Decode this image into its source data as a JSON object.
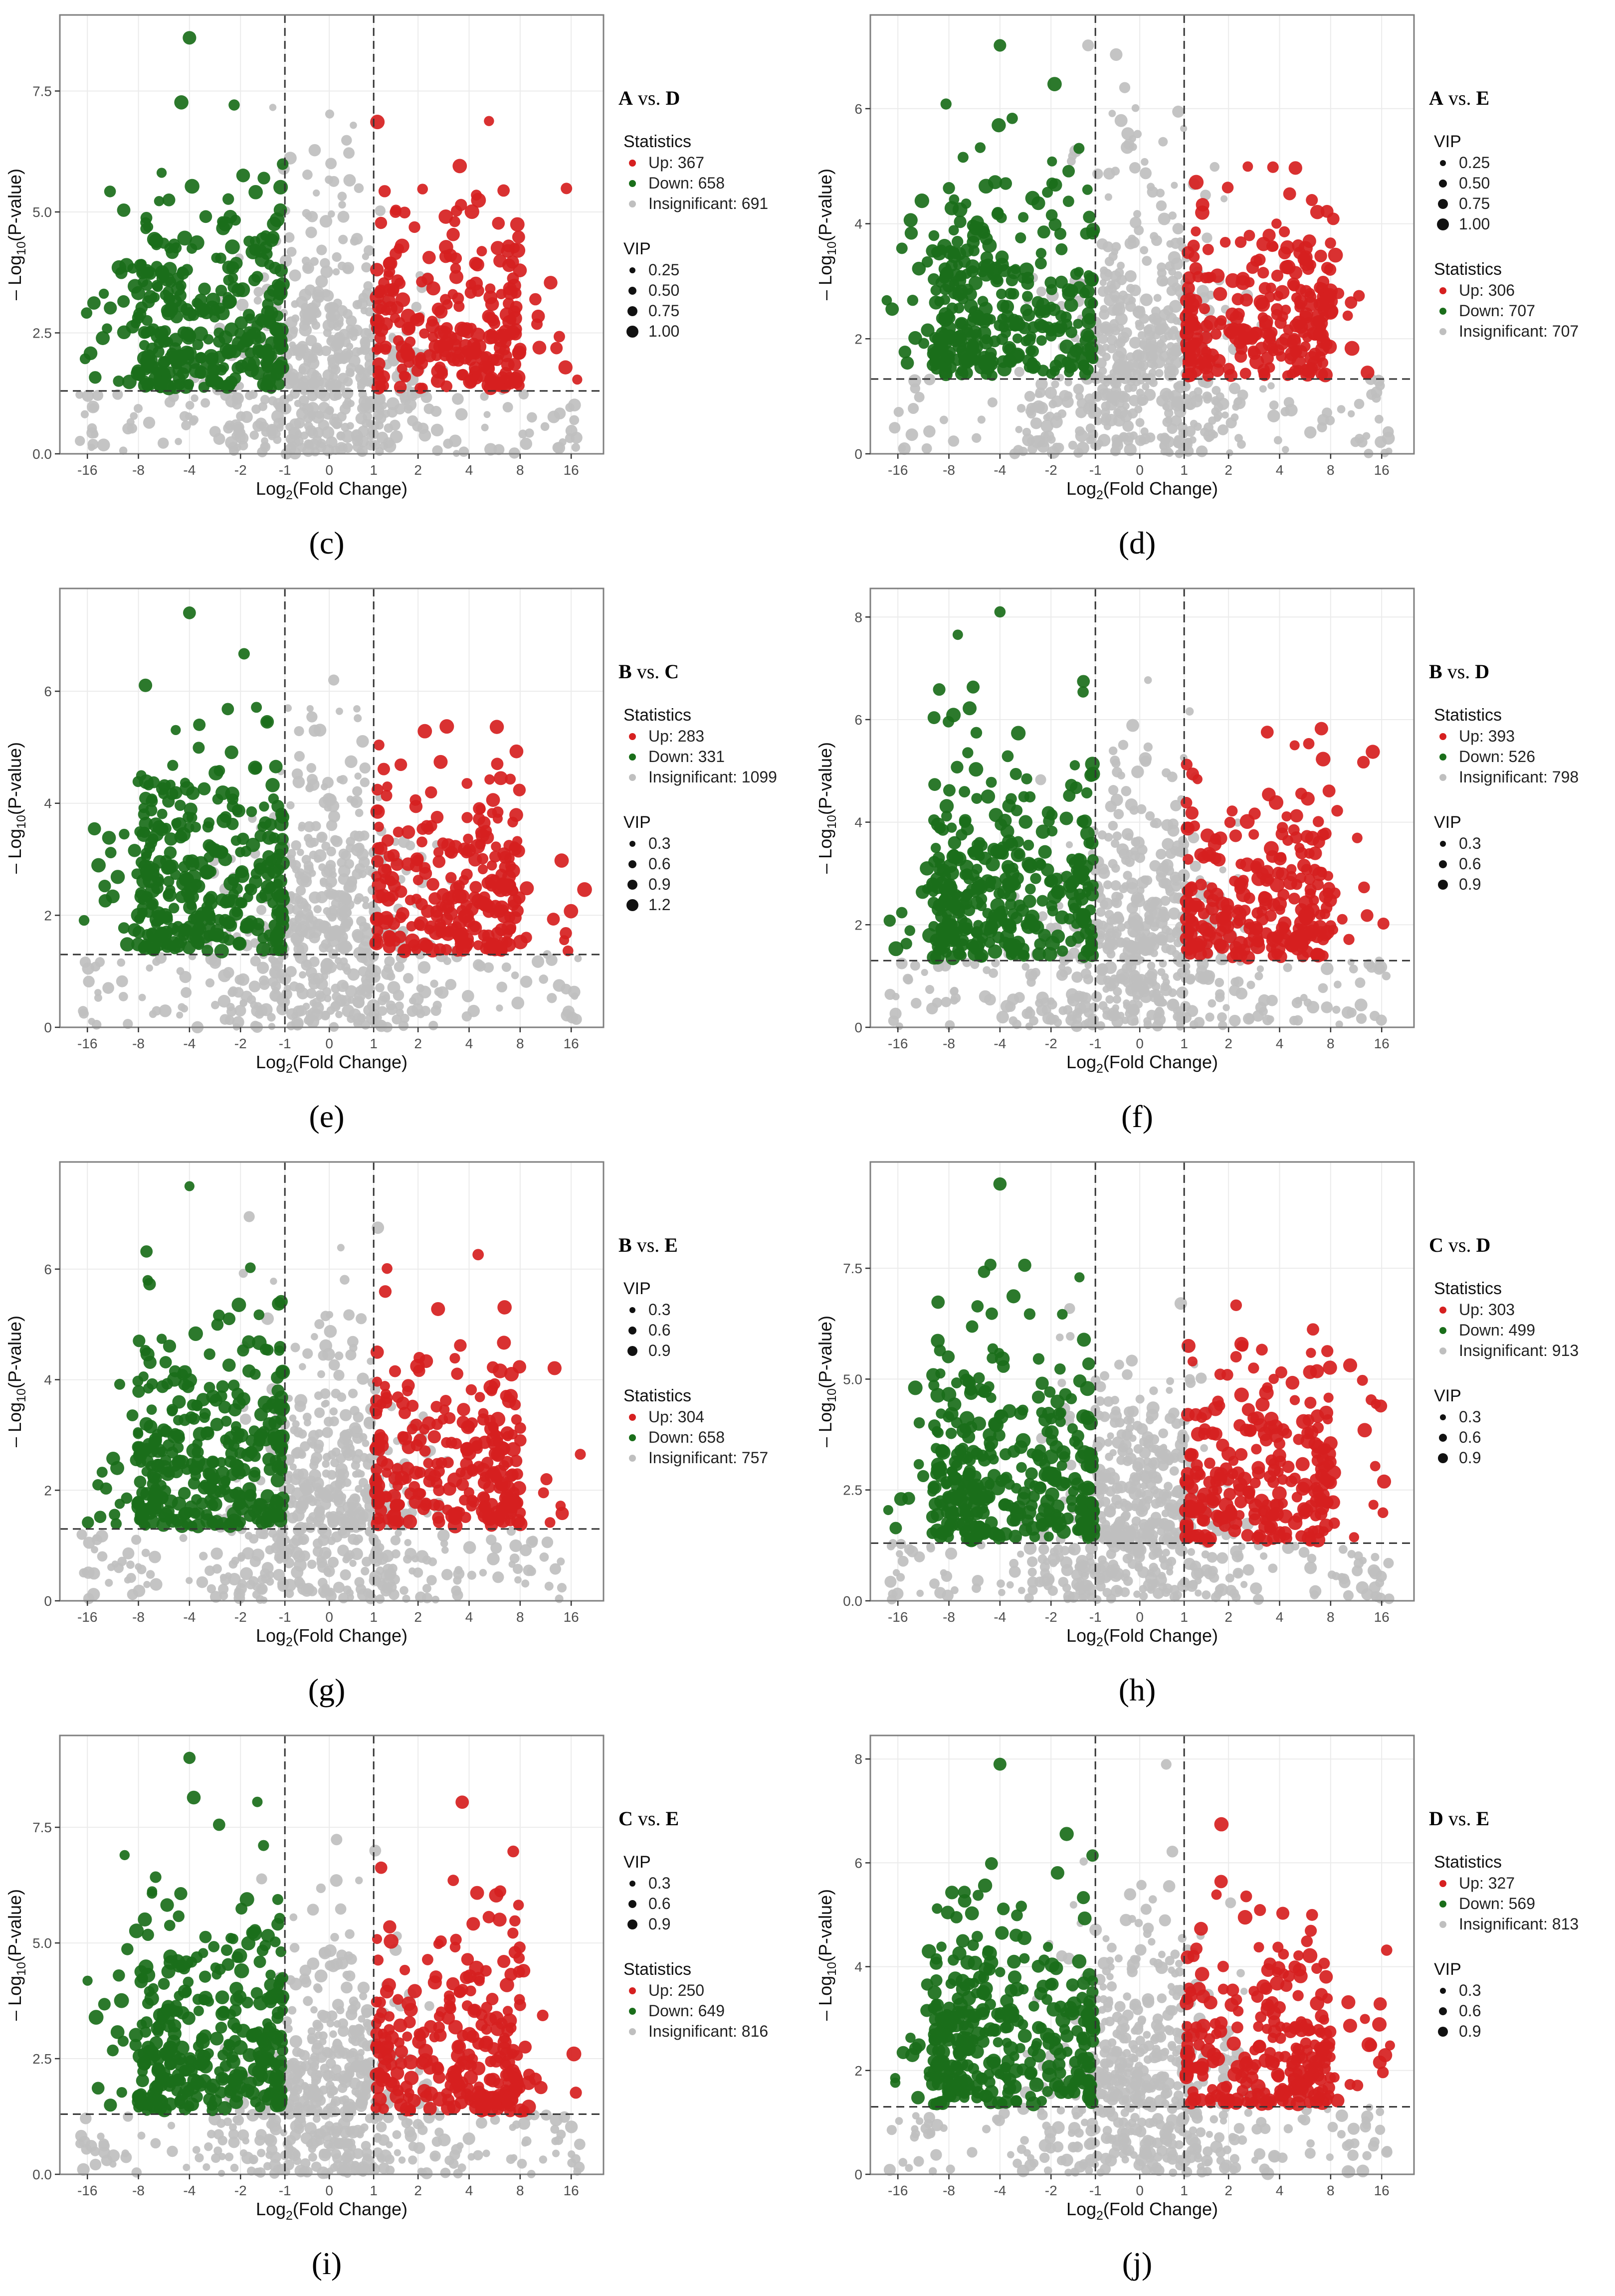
{
  "figure": {
    "x_label_base": "Log",
    "x_label_sub": "2",
    "x_label_rest": "(Fold Change)",
    "y_label_base": "– Log",
    "y_label_sub": "10",
    "y_label_rest": "(P-value)",
    "colors": {
      "up": "#d62020",
      "down": "#1a6e1a",
      "insig": "#bfbfbf",
      "grid": "#ebebeb",
      "frame": "#7f7f7f",
      "line": "#333333"
    }
  },
  "chart_data": [
    {
      "panel_label": "(c)",
      "type": "scatter",
      "title_a": "A",
      "title_vs": " vs. ",
      "title_b": "D",
      "xlabel": "Log2(Fold Change)",
      "ylabel": "– Log10(P-value)",
      "xticks": [
        "-16",
        "-8",
        "-4",
        "-2",
        "-1",
        "0",
        "1",
        "2",
        "4",
        "8",
        "16"
      ],
      "yticks": [
        "0.0",
        "2.5",
        "5.0",
        "7.5"
      ],
      "ylim": [
        0,
        8.8
      ],
      "ymax": 8.6,
      "threshold_y": 1.3,
      "vlines": [
        "-1",
        "1"
      ],
      "stats_label": "Statistics",
      "up": "Up: 367",
      "down": "Down: 658",
      "insig": "Insignificant: 691",
      "vip_label": "VIP",
      "vip_values": [
        "0.25",
        "0.50",
        "0.75",
        "1.00"
      ],
      "legend_order": "stats-first"
    },
    {
      "panel_label": "(d)",
      "type": "scatter",
      "title_a": "A",
      "title_vs": " vs. ",
      "title_b": "E",
      "xlabel": "Log2(Fold Change)",
      "ylabel": "– Log10(P-value)",
      "xticks": [
        "-16",
        "-8",
        "-4",
        "-2",
        "-1",
        "0",
        "1",
        "2",
        "4",
        "8",
        "16"
      ],
      "yticks": [
        "0",
        "2",
        "4",
        "6"
      ],
      "ylim": [
        0,
        7.4
      ],
      "ymax": 7.1,
      "threshold_y": 1.3,
      "vlines": [
        "-1",
        "1"
      ],
      "stats_label": "Statistics",
      "up": "Up: 306",
      "down": "Down: 707",
      "insig": "Insignificant: 707",
      "vip_label": "VIP",
      "vip_values": [
        "0.25",
        "0.50",
        "0.75",
        "1.00"
      ],
      "legend_order": "vip-first"
    },
    {
      "panel_label": "(e)",
      "type": "scatter",
      "title_a": "B",
      "title_vs": " vs. ",
      "title_b": "C",
      "xlabel": "Log2(Fold Change)",
      "ylabel": "– Log10(P-value)",
      "xticks": [
        "-16",
        "-8",
        "-4",
        "-2",
        "-1",
        "0",
        "1",
        "2",
        "4",
        "8",
        "16"
      ],
      "yticks": [
        "0",
        "2",
        "4",
        "6"
      ],
      "ylim": [
        0,
        7.6
      ],
      "ymax": 7.4,
      "threshold_y": 1.3,
      "vlines": [
        "-1",
        "1"
      ],
      "stats_label": "Statistics",
      "up": "Up: 283",
      "down": "Down: 331",
      "insig": "Insignificant: 1099",
      "vip_label": "VIP",
      "vip_values": [
        "0.3",
        "0.6",
        "0.9",
        "1.2"
      ],
      "legend_order": "stats-first"
    },
    {
      "panel_label": "(f)",
      "type": "scatter",
      "title_a": "B",
      "title_vs": " vs. ",
      "title_b": "D",
      "xlabel": "Log2(Fold Change)",
      "ylabel": "– Log10(P-value)",
      "xticks": [
        "-16",
        "-8",
        "-4",
        "-2",
        "-1",
        "0",
        "1",
        "2",
        "4",
        "8",
        "16"
      ],
      "yticks": [
        "0",
        "2",
        "4",
        "6",
        "8"
      ],
      "ylim": [
        0,
        8.3
      ],
      "ymax": 8.1,
      "threshold_y": 1.3,
      "vlines": [
        "-1",
        "1"
      ],
      "stats_label": "Statistics",
      "up": "Up: 393",
      "down": "Down: 526",
      "insig": "Insignificant: 798",
      "vip_label": "VIP",
      "vip_values": [
        "0.3",
        "0.6",
        "0.9"
      ],
      "legend_order": "stats-first"
    },
    {
      "panel_label": "(g)",
      "type": "scatter",
      "title_a": "B",
      "title_vs": " vs. ",
      "title_b": "E",
      "xlabel": "Log2(Fold Change)",
      "ylabel": "– Log10(P-value)",
      "xticks": [
        "-16",
        "-8",
        "-4",
        "-2",
        "-1",
        "0",
        "1",
        "2",
        "4",
        "8",
        "16"
      ],
      "yticks": [
        "0",
        "2",
        "4",
        "6"
      ],
      "ylim": [
        0,
        7.7
      ],
      "ymax": 7.5,
      "threshold_y": 1.3,
      "vlines": [
        "-1",
        "1"
      ],
      "stats_label": "Statistics",
      "up": "Up: 304",
      "down": "Down: 658",
      "insig": "Insignificant: 757",
      "vip_label": "VIP",
      "vip_values": [
        "0.3",
        "0.6",
        "0.9"
      ],
      "legend_order": "vip-first"
    },
    {
      "panel_label": "(h)",
      "type": "scatter",
      "title_a": "C",
      "title_vs": " vs. ",
      "title_b": "D",
      "xlabel": "Log2(Fold Change)",
      "ylabel": "– Log10(P-value)",
      "xticks": [
        "-16",
        "-8",
        "-4",
        "-2",
        "-1",
        "0",
        "1",
        "2",
        "4",
        "8",
        "16"
      ],
      "yticks": [
        "0.0",
        "2.5",
        "5.0",
        "7.5"
      ],
      "ylim": [
        0,
        9.6
      ],
      "ymax": 9.4,
      "threshold_y": 1.3,
      "vlines": [
        "-1",
        "1"
      ],
      "stats_label": "Statistics",
      "up": "Up: 303",
      "down": "Down: 499",
      "insig": "Insignificant: 913",
      "vip_label": "VIP",
      "vip_values": [
        "0.3",
        "0.6",
        "0.9"
      ],
      "legend_order": "stats-first"
    },
    {
      "panel_label": "(i)",
      "type": "scatter",
      "title_a": "C",
      "title_vs": " vs. ",
      "title_b": "E",
      "xlabel": "Log2(Fold Change)",
      "ylabel": "– Log10(P-value)",
      "xticks": [
        "-16",
        "-8",
        "-4",
        "-2",
        "-1",
        "0",
        "1",
        "2",
        "4",
        "8",
        "16"
      ],
      "yticks": [
        "0.0",
        "2.5",
        "5.0",
        "7.5"
      ],
      "ylim": [
        0,
        9.2
      ],
      "ymax": 9.0,
      "threshold_y": 1.3,
      "vlines": [
        "-1",
        "1"
      ],
      "stats_label": "Statistics",
      "up": "Up: 250",
      "down": "Down: 649",
      "insig": "Insignificant: 816",
      "vip_label": "VIP",
      "vip_values": [
        "0.3",
        "0.6",
        "0.9"
      ],
      "legend_order": "vip-first"
    },
    {
      "panel_label": "(j)",
      "type": "scatter",
      "title_a": "D",
      "title_vs": " vs. ",
      "title_b": "E",
      "xlabel": "Log2(Fold Change)",
      "ylabel": "– Log10(P-value)",
      "xticks": [
        "-16",
        "-8",
        "-4",
        "-2",
        "-1",
        "0",
        "1",
        "2",
        "4",
        "8",
        "16"
      ],
      "yticks": [
        "0",
        "2",
        "4",
        "6",
        "8"
      ],
      "ylim": [
        0,
        8.2
      ],
      "ymax": 7.9,
      "threshold_y": 1.3,
      "vlines": [
        "-1",
        "1"
      ],
      "stats_label": "Statistics",
      "up": "Up: 327",
      "down": "Down: 569",
      "insig": "Insignificant: 813",
      "vip_label": "VIP",
      "vip_values": [
        "0.3",
        "0.6",
        "0.9"
      ],
      "legend_order": "stats-first"
    }
  ]
}
